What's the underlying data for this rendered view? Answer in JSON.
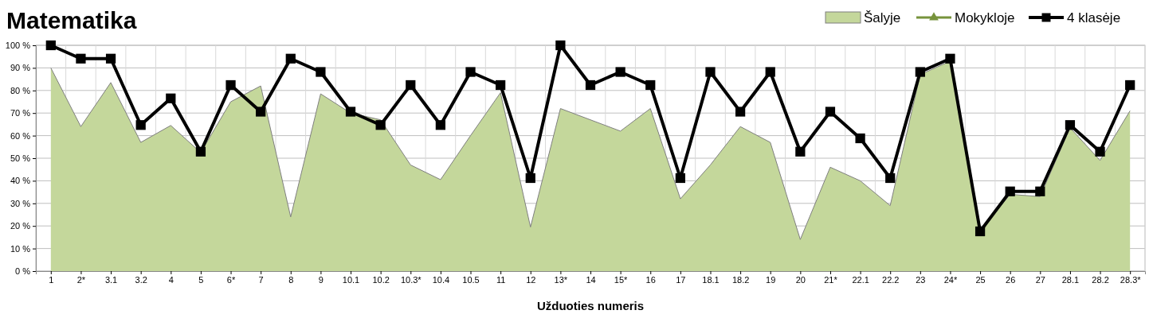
{
  "chart_data": {
    "type": "line",
    "title": "Matematika",
    "xlabel": "Užduoties numeris",
    "categories": [
      "1",
      "2*",
      "3.1",
      "3.2",
      "4",
      "5",
      "6*",
      "7",
      "8",
      "9",
      "10.1",
      "10.2",
      "10.3*",
      "10.4",
      "10.5",
      "11",
      "12",
      "13*",
      "14",
      "15*",
      "16",
      "17",
      "18.1",
      "18.2",
      "19",
      "20",
      "21*",
      "22.1",
      "22.2",
      "23",
      "24*",
      "25",
      "26",
      "27",
      "28.1",
      "28.2",
      "28.3*"
    ],
    "series": [
      {
        "name": "Šalyje",
        "type": "area",
        "color": "#c4d79b",
        "values": [
          90,
          64,
          83.5,
          57,
          64.5,
          52.5,
          75,
          82,
          24,
          78.5,
          70,
          67,
          47,
          40.5,
          60,
          79,
          19.5,
          72,
          67,
          62,
          72,
          32,
          47,
          64,
          57,
          14,
          46,
          40,
          29,
          87,
          93,
          17.5,
          34,
          33,
          63.5,
          49,
          71
        ]
      },
      {
        "name": "Mokykloje",
        "marker": "triangle",
        "color": "#77933c",
        "values": [
          null,
          null,
          null,
          null,
          null,
          null,
          null,
          null,
          null,
          null,
          null,
          null,
          null,
          null,
          null,
          null,
          null,
          null,
          null,
          null,
          null,
          null,
          null,
          null,
          null,
          null,
          null,
          null,
          null,
          null,
          null,
          null,
          null,
          null,
          null,
          null,
          null
        ]
      },
      {
        "name": "4 klasėje",
        "marker": "square",
        "color": "#000000",
        "values": [
          100,
          94.1,
          94.1,
          64.7,
          76.5,
          52.9,
          82.4,
          70.6,
          94.1,
          88.2,
          70.6,
          64.7,
          82.4,
          64.7,
          88.2,
          82.4,
          41.2,
          100,
          82.4,
          88.2,
          82.4,
          41.2,
          88.2,
          70.6,
          88.2,
          52.9,
          70.6,
          58.8,
          41.2,
          88.2,
          94.1,
          17.6,
          35.3,
          35.3,
          64.7,
          52.9,
          82.4
        ]
      }
    ],
    "ylim": [
      0,
      100
    ],
    "yticks": [
      {
        "value": 0,
        "label": "0 %"
      },
      {
        "value": 10,
        "label": "10 %"
      },
      {
        "value": 20,
        "label": "20 %"
      },
      {
        "value": 30,
        "label": "30 %"
      },
      {
        "value": 40,
        "label": "40 %"
      },
      {
        "value": 50,
        "label": "50 %"
      },
      {
        "value": 60,
        "label": "60 %"
      },
      {
        "value": 70,
        "label": "70 %"
      },
      {
        "value": 80,
        "label": "80 %"
      },
      {
        "value": 90,
        "label": "90 %"
      },
      {
        "value": 100,
        "label": "100 %"
      }
    ],
    "grid": true,
    "legend": "top right"
  }
}
